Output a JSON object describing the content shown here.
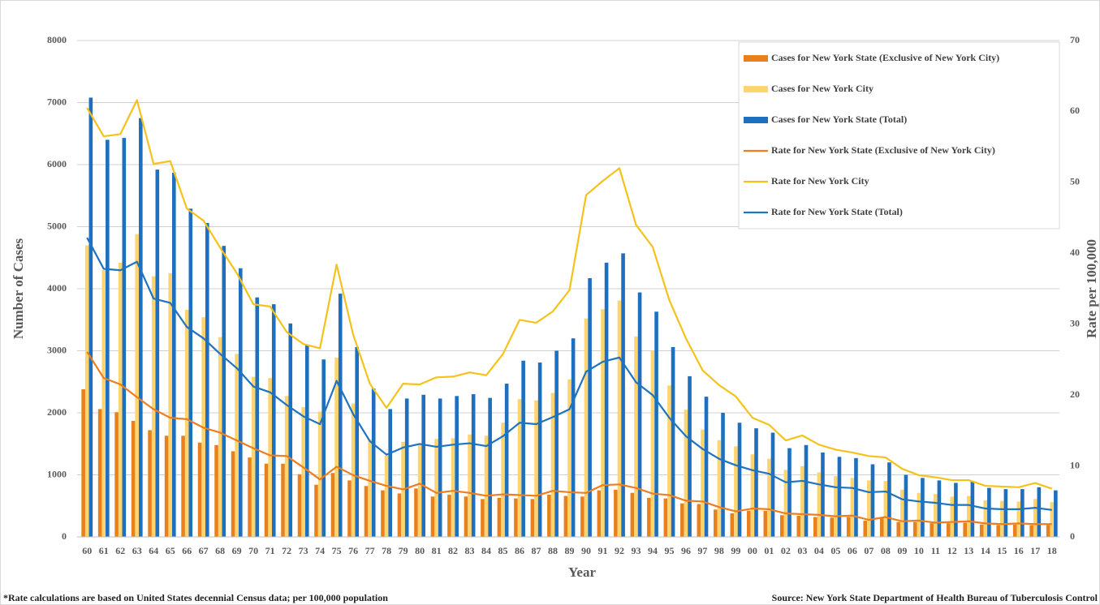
{
  "chart_data": {
    "type": "bar",
    "x_label": "Year",
    "y_label": "Number of Cases",
    "y2_label": "Rate per 100,000",
    "footnote": "*Rate calculations are based on United States decennial Census data; per 100,000 population",
    "source": "Source: New York State Department of Health Bureau of Tuberculosis Control",
    "categories": [
      "60",
      "61",
      "62",
      "63",
      "64",
      "65",
      "66",
      "67",
      "68",
      "69",
      "70",
      "71",
      "72",
      "73",
      "74",
      "75",
      "76",
      "77",
      "78",
      "79",
      "80",
      "81",
      "82",
      "83",
      "84",
      "85",
      "86",
      "87",
      "88",
      "89",
      "90",
      "91",
      "92",
      "93",
      "94",
      "95",
      "96",
      "97",
      "98",
      "99",
      "00",
      "01",
      "02",
      "03",
      "04",
      "05",
      "06",
      "07",
      "08",
      "09",
      "10",
      "11",
      "12",
      "13",
      "14",
      "15",
      "16",
      "17",
      "18"
    ],
    "ylim": [
      0,
      8000
    ],
    "yticks": [
      0,
      1000,
      2000,
      3000,
      4000,
      5000,
      6000,
      7000,
      8000
    ],
    "y2lim": [
      0,
      70
    ],
    "y2ticks": [
      0,
      10,
      20,
      30,
      40,
      50,
      60,
      70
    ],
    "grid": true,
    "legend": "top-right",
    "series": [
      {
        "name": "Cases for New York State (Exclusive of New York City)",
        "type": "bar",
        "color": "#e8801e",
        "values": [
          2380,
          2060,
          2010,
          1870,
          1720,
          1630,
          1630,
          1520,
          1480,
          1380,
          1280,
          1180,
          1180,
          1010,
          840,
          1030,
          910,
          820,
          750,
          700,
          780,
          650,
          680,
          650,
          610,
          630,
          620,
          610,
          680,
          660,
          650,
          750,
          760,
          710,
          630,
          620,
          540,
          530,
          440,
          380,
          420,
          420,
          350,
          340,
          320,
          310,
          320,
          260,
          300,
          240,
          240,
          220,
          220,
          230,
          200,
          190,
          200,
          190,
          190
        ]
      },
      {
        "name": "Cases for New York City",
        "type": "bar",
        "color": "#fdd46e",
        "values": [
          4700,
          4300,
          4420,
          4880,
          4200,
          4250,
          3660,
          3540,
          3220,
          2950,
          2580,
          2560,
          2270,
          2090,
          2020,
          2890,
          2150,
          1570,
          1310,
          1530,
          1510,
          1580,
          1590,
          1650,
          1630,
          1840,
          2220,
          2200,
          2320,
          2540,
          3520,
          3670,
          3810,
          3230,
          3000,
          2440,
          2050,
          1730,
          1560,
          1460,
          1330,
          1260,
          1080,
          1140,
          1040,
          980,
          950,
          910,
          900,
          760,
          710,
          690,
          650,
          660,
          590,
          580,
          570,
          610,
          560
        ]
      },
      {
        "name": "Cases for New York State (Total)",
        "type": "bar",
        "color": "#1f6fbf",
        "values": [
          7080,
          6400,
          6430,
          6750,
          5920,
          5870,
          5290,
          5060,
          4690,
          4330,
          3860,
          3750,
          3440,
          3100,
          2860,
          3920,
          3060,
          2390,
          2060,
          2230,
          2290,
          2230,
          2270,
          2300,
          2240,
          2470,
          2840,
          2810,
          3000,
          3200,
          4170,
          4420,
          4570,
          3940,
          3630,
          3060,
          2590,
          2260,
          2000,
          1840,
          1750,
          1680,
          1430,
          1480,
          1360,
          1290,
          1270,
          1170,
          1200,
          1000,
          950,
          910,
          870,
          890,
          790,
          770,
          770,
          800,
          750
        ]
      },
      {
        "name": "Rate for New York State (Exclusive of New York City)",
        "type": "line",
        "axis": "y2",
        "color": "#ee7d22",
        "values": [
          26.1,
          22.4,
          21.5,
          19.7,
          18.0,
          16.8,
          16.6,
          15.4,
          14.7,
          13.6,
          12.5,
          11.5,
          11.4,
          9.8,
          8.1,
          9.9,
          8.7,
          7.9,
          7.2,
          6.7,
          7.5,
          6.2,
          6.5,
          6.2,
          5.8,
          6.0,
          5.9,
          5.8,
          6.5,
          6.3,
          6.2,
          7.3,
          7.4,
          6.9,
          6.1,
          5.9,
          5.1,
          5.0,
          4.2,
          3.6,
          4.0,
          3.9,
          3.3,
          3.2,
          3.1,
          2.9,
          3.0,
          2.4,
          2.8,
          2.2,
          2.3,
          2.0,
          2.1,
          2.2,
          1.9,
          1.8,
          1.9,
          1.8,
          1.8
        ]
      },
      {
        "name": "Rate for New York City",
        "type": "line",
        "axis": "y2",
        "color": "#f5c21c",
        "values": [
          60.5,
          56.5,
          56.8,
          61.6,
          52.6,
          53.0,
          46.3,
          44.6,
          40.8,
          37.2,
          32.8,
          32.5,
          28.9,
          27.2,
          26.6,
          38.4,
          28.5,
          21.6,
          18.2,
          21.6,
          21.5,
          22.5,
          22.6,
          23.2,
          22.8,
          25.8,
          30.6,
          30.2,
          31.8,
          34.8,
          48.2,
          50.2,
          52.0,
          44.0,
          40.9,
          33.4,
          28.0,
          23.5,
          21.4,
          19.8,
          16.8,
          15.8,
          13.6,
          14.3,
          13.0,
          12.3,
          11.9,
          11.4,
          11.2,
          9.6,
          8.7,
          8.4,
          8.0,
          8.0,
          7.2,
          7.1,
          7.0,
          7.6,
          6.8
        ]
      },
      {
        "name": "Rate for New York State (Total)",
        "type": "line",
        "axis": "y2",
        "color": "#1f73bf",
        "values": [
          42.2,
          37.8,
          37.6,
          38.8,
          33.6,
          33.0,
          29.6,
          28.0,
          25.8,
          23.8,
          21.2,
          20.4,
          18.6,
          17.0,
          15.9,
          22.0,
          17.3,
          13.5,
          11.6,
          12.6,
          13.1,
          12.7,
          13.0,
          13.2,
          12.8,
          14.2,
          16.1,
          15.9,
          16.9,
          18.0,
          23.3,
          24.7,
          25.3,
          21.8,
          20.0,
          16.8,
          14.2,
          12.4,
          11.0,
          10.1,
          9.4,
          8.9,
          7.7,
          7.9,
          7.4,
          7.0,
          6.9,
          6.3,
          6.4,
          5.3,
          5.0,
          4.8,
          4.5,
          4.5,
          4.0,
          3.9,
          3.9,
          4.1,
          3.8
        ]
      }
    ]
  }
}
